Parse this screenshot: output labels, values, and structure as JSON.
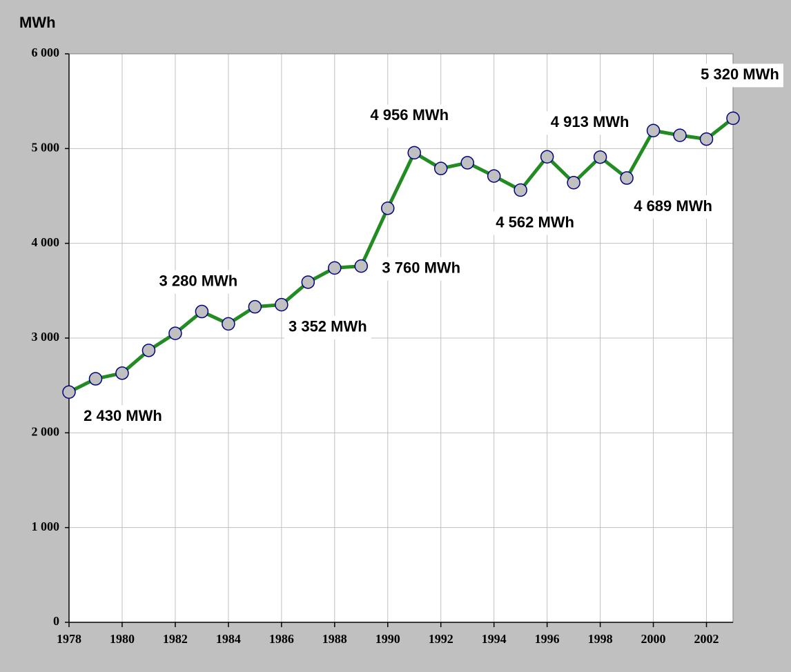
{
  "chart_data": {
    "type": "line",
    "y_axis_label": "MWh",
    "x": [
      1978,
      1979,
      1980,
      1981,
      1982,
      1983,
      1984,
      1985,
      1986,
      1987,
      1988,
      1989,
      1990,
      1991,
      1992,
      1993,
      1994,
      1995,
      1996,
      1997,
      1998,
      1999,
      2000,
      2001,
      2002,
      2003
    ],
    "series": [
      {
        "color": "#228b22",
        "marker_color": "#c0c0c0",
        "values": [
          2430,
          2570,
          2630,
          2870,
          3050,
          3280,
          3150,
          3330,
          3352,
          3590,
          3740,
          3760,
          4370,
          4956,
          4790,
          4850,
          4710,
          4562,
          4913,
          4640,
          4910,
          4689,
          5190,
          5140,
          5100,
          5320
        ],
        "value_labels": [
          "2 430 MWh",
          null,
          null,
          null,
          null,
          "3 280 MWh",
          null,
          null,
          "3 352 MWh",
          null,
          null,
          "3 760 MWh",
          null,
          "4 956 MWh",
          null,
          null,
          null,
          "4 562 MWh",
          "4 913 MWh",
          null,
          null,
          "4 689 MWh",
          null,
          null,
          null,
          "5 320 MWh"
        ]
      }
    ],
    "xlim": [
      1978,
      2003
    ],
    "xticks": [
      1978,
      1980,
      1982,
      1984,
      1986,
      1988,
      1990,
      1992,
      1994,
      1996,
      1998,
      2000,
      2002
    ],
    "ylim": [
      0,
      6000
    ],
    "yticks": [
      0,
      {
        "value": 1000,
        "label": "1 000"
      },
      {
        "value": 2000,
        "label": "2 000"
      },
      {
        "value": 3000,
        "label": "3 000"
      },
      {
        "value": 4000,
        "label": "4 000"
      },
      {
        "value": 5000,
        "label": "5 000"
      },
      {
        "value": 6000,
        "label": "6 000"
      }
    ],
    "grid": true
  }
}
